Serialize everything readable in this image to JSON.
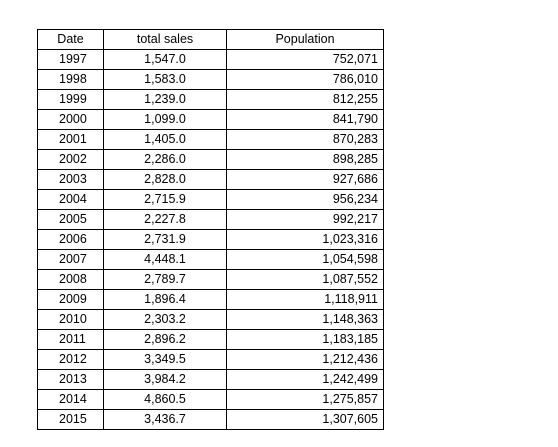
{
  "table": {
    "headers": {
      "date": "Date",
      "sales": "total sales",
      "population": "Population"
    },
    "rows": [
      {
        "date": "1997",
        "sales": "1,547.0",
        "population": "752,071"
      },
      {
        "date": "1998",
        "sales": "1,583.0",
        "population": "786,010"
      },
      {
        "date": "1999",
        "sales": "1,239.0",
        "population": "812,255"
      },
      {
        "date": "2000",
        "sales": "1,099.0",
        "population": "841,790"
      },
      {
        "date": "2001",
        "sales": "1,405.0",
        "population": "870,283"
      },
      {
        "date": "2002",
        "sales": "2,286.0",
        "population": "898,285"
      },
      {
        "date": "2003",
        "sales": "2,828.0",
        "population": "927,686"
      },
      {
        "date": "2004",
        "sales": "2,715.9",
        "population": "956,234"
      },
      {
        "date": "2005",
        "sales": "2,227.8",
        "population": "992,217"
      },
      {
        "date": "2006",
        "sales": "2,731.9",
        "population": "1,023,316"
      },
      {
        "date": "2007",
        "sales": "4,448.1",
        "population": "1,054,598"
      },
      {
        "date": "2008",
        "sales": "2,789.7",
        "population": "1,087,552"
      },
      {
        "date": "2009",
        "sales": "1,896.4",
        "population": "1,118,911"
      },
      {
        "date": "2010",
        "sales": "2,303.2",
        "population": "1,148,363"
      },
      {
        "date": "2011",
        "sales": "2,896.2",
        "population": "1,183,185"
      },
      {
        "date": "2012",
        "sales": "3,349.5",
        "population": "1,212,436"
      },
      {
        "date": "2013",
        "sales": "3,984.2",
        "population": "1,242,499"
      },
      {
        "date": "2014",
        "sales": "4,860.5",
        "population": "1,275,857"
      },
      {
        "date": "2015",
        "sales": "3,436.7",
        "population": "1,307,605"
      }
    ]
  }
}
